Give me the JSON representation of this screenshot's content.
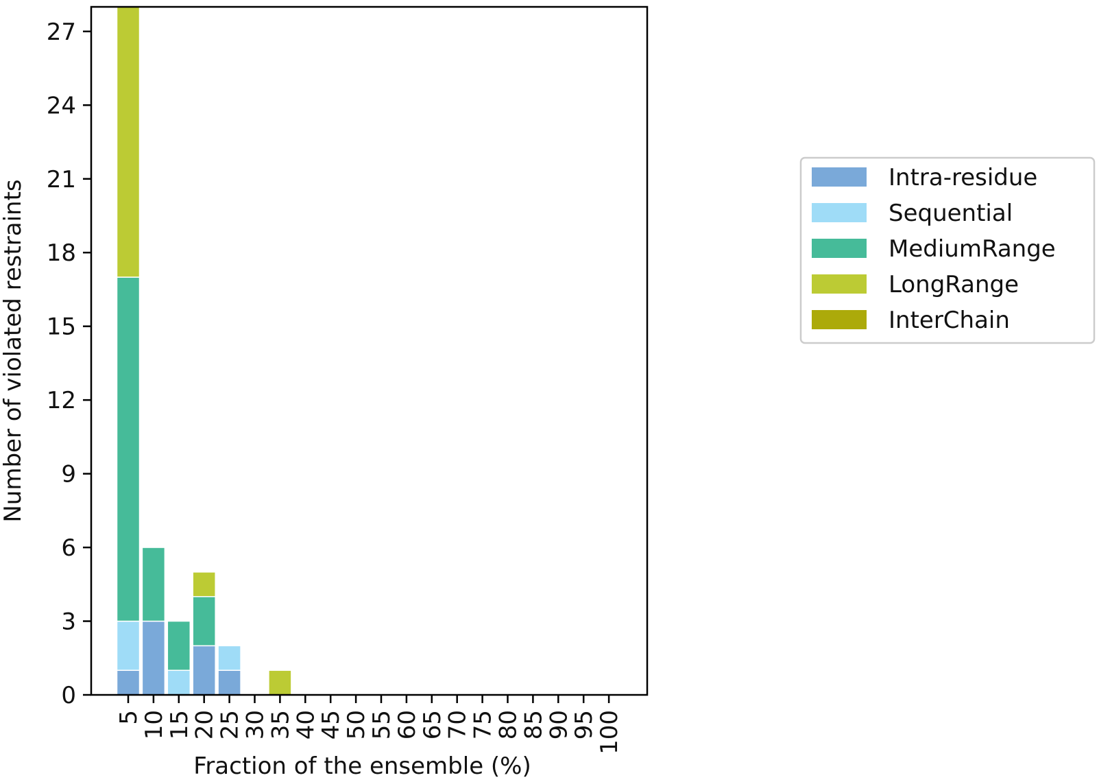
{
  "chart_data": {
    "type": "bar",
    "stacked": true,
    "categories": [
      "5",
      "10",
      "15",
      "20",
      "25",
      "30",
      "35",
      "40",
      "45",
      "50",
      "55",
      "60",
      "65",
      "70",
      "75",
      "80",
      "85",
      "90",
      "95",
      "100"
    ],
    "series": [
      {
        "name": "Intra-residue",
        "color": "#7aa9d9",
        "values": [
          1,
          3,
          0,
          2,
          1,
          0,
          0,
          0,
          0,
          0,
          0,
          0,
          0,
          0,
          0,
          0,
          0,
          0,
          0,
          0
        ]
      },
      {
        "name": "Sequential",
        "color": "#9fdcf7",
        "values": [
          2,
          0,
          1,
          0,
          1,
          0,
          0,
          0,
          0,
          0,
          0,
          0,
          0,
          0,
          0,
          0,
          0,
          0,
          0,
          0
        ]
      },
      {
        "name": "MediumRange",
        "color": "#46bb99",
        "values": [
          14,
          3,
          2,
          2,
          0,
          0,
          0,
          0,
          0,
          0,
          0,
          0,
          0,
          0,
          0,
          0,
          0,
          0,
          0,
          0
        ]
      },
      {
        "name": "LongRange",
        "color": "#bccb34",
        "values": [
          11,
          0,
          0,
          1,
          0,
          0,
          1,
          0,
          0,
          0,
          0,
          0,
          0,
          0,
          0,
          0,
          0,
          0,
          0,
          0
        ]
      },
      {
        "name": "InterChain",
        "color": "#acaa0a",
        "values": [
          0,
          0,
          0,
          0,
          0,
          0,
          0,
          0,
          0,
          0,
          0,
          0,
          0,
          0,
          0,
          0,
          0,
          0,
          0,
          0
        ]
      }
    ],
    "xlabel": "Fraction of the ensemble (%)",
    "ylabel": "Number of violated restraints",
    "yticks": [
      "0",
      "3",
      "6",
      "9",
      "12",
      "15",
      "18",
      "21",
      "24",
      "27"
    ],
    "ylim": [
      0,
      28
    ],
    "grid": false,
    "legend_position": "right"
  }
}
